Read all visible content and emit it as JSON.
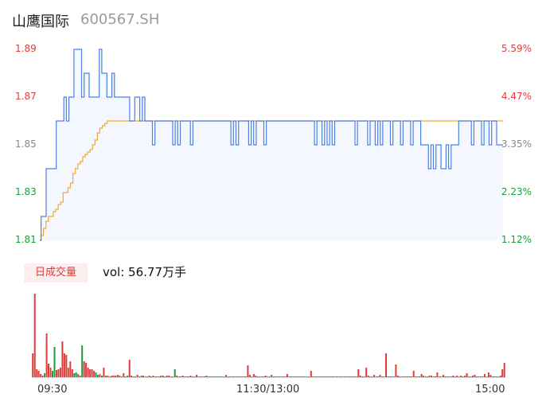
{
  "header": {
    "name": "山鹰国际",
    "code": "600567.SH"
  },
  "volume_label": {
    "badge": "日成交量",
    "text": "vol: 56.77万手"
  },
  "colors": {
    "price_line": "#4a80e8",
    "avg_line": "#f0a830",
    "area": "#f4f7fd",
    "up": "#e03c3c",
    "down": "#1a9e3a",
    "neutral": "#888888"
  },
  "chart_data": [
    {
      "type": "line",
      "yticks_left": [
        "1.89",
        "1.87",
        "1.85",
        "1.83",
        "1.81"
      ],
      "yticks_right": [
        "5.59%",
        "4.47%",
        "3.35%",
        "2.23%",
        "1.12%"
      ],
      "ylim": [
        1.81,
        1.89
      ],
      "xticks": [
        "09:30",
        "11:30/13:00",
        "15:00"
      ],
      "series": [
        {
          "values": [
            1.81,
            1.82,
            1.82,
            1.84,
            1.84,
            1.84,
            1.84,
            1.86,
            1.86,
            1.86,
            1.87,
            1.86,
            1.87,
            1.87,
            1.89,
            1.89,
            1.89,
            1.87,
            1.88,
            1.88,
            1.87,
            1.87,
            1.87,
            1.87,
            1.89,
            1.88,
            1.88,
            1.87,
            1.87,
            1.88,
            1.87,
            1.87,
            1.87,
            1.87,
            1.87,
            1.87,
            1.86,
            1.86,
            1.87,
            1.87,
            1.86,
            1.87,
            1.86,
            1.86,
            1.86,
            1.85,
            1.86,
            1.86,
            1.86,
            1.86,
            1.86,
            1.86,
            1.86,
            1.85,
            1.86,
            1.85,
            1.86,
            1.86,
            1.86,
            1.86,
            1.85,
            1.86,
            1.86,
            1.86,
            1.86,
            1.86,
            1.86,
            1.86,
            1.86,
            1.86,
            1.86,
            1.86,
            1.86,
            1.86,
            1.86,
            1.86,
            1.85,
            1.86,
            1.85,
            1.86,
            1.86,
            1.86,
            1.86,
            1.85,
            1.86,
            1.85,
            1.86,
            1.86,
            1.86,
            1.85,
            1.86,
            1.86,
            1.86,
            1.86,
            1.86,
            1.86,
            1.86,
            1.86,
            1.86,
            1.86,
            1.86,
            1.86,
            1.86,
            1.86,
            1.86,
            1.86,
            1.86,
            1.86,
            1.86,
            1.85,
            1.86,
            1.86,
            1.85,
            1.86,
            1.85,
            1.86,
            1.85,
            1.86,
            1.86,
            1.86,
            1.86,
            1.86,
            1.86,
            1.86,
            1.86,
            1.85,
            1.86,
            1.86,
            1.86,
            1.86,
            1.85,
            1.86,
            1.86,
            1.85,
            1.86,
            1.85,
            1.86,
            1.86,
            1.86,
            1.85,
            1.86,
            1.86,
            1.86,
            1.85,
            1.86,
            1.86,
            1.86,
            1.85,
            1.86,
            1.86,
            1.86,
            1.85,
            1.85,
            1.85,
            1.84,
            1.85,
            1.84,
            1.85,
            1.85,
            1.84,
            1.84,
            1.85,
            1.84,
            1.85,
            1.85,
            1.85,
            1.86,
            1.86,
            1.86,
            1.86,
            1.86,
            1.85,
            1.86,
            1.86,
            1.86,
            1.85,
            1.86,
            1.86,
            1.85,
            1.86,
            1.86,
            1.85,
            1.85,
            1.85
          ]
        },
        {
          "values": [
            1.81,
            1.812,
            1.815,
            1.818,
            1.82,
            1.82,
            1.822,
            1.823,
            1.825,
            1.826,
            1.83,
            1.83,
            1.832,
            1.834,
            1.838,
            1.84,
            1.842,
            1.843,
            1.845,
            1.846,
            1.847,
            1.848,
            1.85,
            1.852,
            1.855,
            1.857,
            1.858,
            1.859,
            1.86,
            1.86,
            1.86,
            1.86,
            1.86,
            1.86,
            1.86,
            1.86,
            1.86,
            1.86,
            1.86,
            1.86,
            1.86,
            1.86,
            1.86,
            1.86,
            1.86,
            1.86,
            1.86,
            1.86,
            1.86,
            1.86,
            1.86,
            1.86,
            1.86,
            1.86,
            1.86,
            1.86,
            1.86,
            1.86,
            1.86,
            1.86,
            1.86,
            1.86,
            1.86,
            1.86,
            1.86,
            1.86,
            1.86,
            1.86,
            1.86,
            1.86,
            1.86,
            1.86,
            1.86,
            1.86,
            1.86,
            1.86,
            1.86,
            1.86,
            1.86,
            1.86,
            1.86,
            1.86,
            1.86,
            1.86,
            1.86,
            1.86,
            1.86,
            1.86,
            1.86,
            1.86,
            1.86,
            1.86,
            1.86,
            1.86,
            1.86,
            1.86,
            1.86,
            1.86,
            1.86,
            1.86,
            1.86,
            1.86,
            1.86,
            1.86,
            1.86,
            1.86,
            1.86,
            1.86,
            1.86,
            1.86,
            1.86,
            1.86,
            1.86,
            1.86,
            1.86,
            1.86,
            1.86,
            1.86,
            1.86,
            1.86,
            1.86,
            1.86,
            1.86,
            1.86,
            1.86,
            1.86,
            1.86,
            1.86,
            1.86,
            1.86,
            1.86,
            1.86,
            1.86,
            1.86,
            1.86,
            1.86,
            1.86,
            1.86,
            1.86,
            1.86,
            1.86,
            1.86,
            1.86,
            1.86,
            1.86,
            1.86,
            1.86,
            1.86,
            1.86,
            1.86,
            1.86,
            1.86,
            1.86,
            1.86,
            1.86,
            1.86,
            1.86,
            1.86,
            1.86,
            1.86,
            1.86,
            1.86,
            1.86,
            1.86,
            1.86,
            1.86,
            1.86,
            1.86,
            1.86,
            1.86,
            1.86,
            1.86,
            1.86,
            1.86,
            1.86,
            1.86,
            1.86,
            1.86,
            1.86,
            1.86,
            1.86,
            1.86,
            1.86,
            1.86,
            1.86,
            1.86,
            1.86,
            1.86,
            1.86,
            1.86
          ]
        }
      ]
    },
    {
      "type": "bar",
      "title": "vol: 56.77万手",
      "values": [
        30,
        105,
        10,
        8,
        4,
        2,
        5,
        55,
        17,
        12,
        8,
        38,
        9,
        10,
        12,
        45,
        30,
        28,
        12,
        20,
        10,
        5,
        6,
        4,
        2,
        40,
        20,
        18,
        12,
        10,
        10,
        8,
        6,
        3,
        4,
        2,
        12,
        2,
        2,
        1,
        2,
        2,
        2,
        3,
        2,
        1,
        5,
        1,
        2,
        22,
        2,
        1,
        1,
        3,
        1,
        2,
        2,
        1,
        1,
        2,
        1,
        2,
        1,
        1,
        1,
        2,
        2,
        1,
        2,
        2,
        1,
        1,
        10,
        2,
        1,
        1,
        2,
        1,
        1,
        1,
        2,
        1,
        1,
        3,
        1,
        1,
        1,
        1,
        2,
        1,
        1,
        1,
        1,
        1,
        1,
        1,
        1,
        1,
        3,
        1,
        1,
        1,
        1,
        1,
        1,
        1,
        1,
        1,
        1,
        15,
        3,
        1,
        4,
        2,
        1,
        1,
        1,
        1,
        2,
        1,
        1,
        3,
        1,
        1,
        1,
        1,
        1,
        1,
        1,
        4,
        1,
        1,
        1,
        1,
        1,
        1,
        1,
        1,
        1,
        1,
        1,
        8,
        1,
        1,
        1,
        1,
        1,
        1,
        1,
        1,
        1,
        1,
        1,
        1,
        1,
        1,
        1,
        1,
        1,
        1,
        1,
        1,
        1,
        1,
        1,
        10,
        2,
        1,
        1,
        12,
        2,
        1,
        1,
        3,
        1,
        1,
        3,
        1,
        1,
        30,
        1,
        1,
        1,
        1,
        16,
        2,
        1,
        1,
        1,
        1,
        1,
        1,
        1,
        8,
        1,
        1,
        1,
        4,
        2,
        1,
        1,
        2,
        2,
        1,
        1,
        6,
        1,
        1,
        3,
        1,
        1,
        1,
        1,
        2,
        1,
        2,
        1,
        2,
        1,
        2,
        5,
        1,
        1,
        2,
        3,
        1,
        1,
        1,
        1,
        4,
        1,
        6,
        3,
        1,
        1,
        1,
        1,
        2,
        10,
        18
      ],
      "direction": "uuuuuuduuudduuuuuuuuuddudduuuuuudduduuuuuuuuuuuuduuuduuuduuuuuduuuuuuuudduuuuuuuuuuuuuuuuuuuuuuduuuuuuuuuuuuuuuuuuuuuduuuuuuuuuuuuuuuuuuuuuuuuuuuuuuduuuuuuuuuuuuuuuuuuuuuuduuuuuuuudduuuuuuduuuuuuuuuuuuuuuduuuuuuuuuuuuuuuuuuuuuuuuuuuuuuduuu"
    }
  ]
}
